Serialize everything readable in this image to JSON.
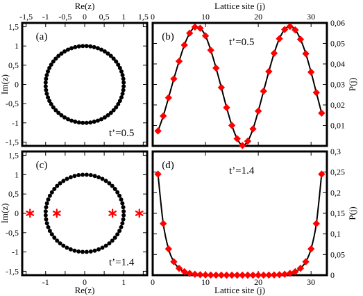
{
  "chart_data": [
    {
      "panel": "a",
      "type": "scatter",
      "label": "(a)",
      "annotation": "t’=0.5",
      "xlabel": "Re(z)",
      "ylabel": "Im(z)",
      "xlim": [
        -1.6,
        1.6
      ],
      "ylim": [
        -1.6,
        1.6
      ],
      "xticks": [
        -1.5,
        -1,
        -0.5,
        0,
        0.5,
        1,
        1.5
      ],
      "xtick_labels": [
        "-1,5",
        "-1",
        "-0,5",
        "0",
        "0,5",
        "1",
        "1,5"
      ],
      "yticks": [
        -1.5,
        -1,
        -0.5,
        0,
        0.5,
        1,
        1.5
      ],
      "ytick_labels": [
        "-1,5",
        "-1",
        "-0,5",
        "0",
        "0,5",
        "1",
        "1,5"
      ],
      "series": [
        {
          "kind": "circle",
          "color": "#000000",
          "marker": "dot",
          "count": 64,
          "radius": 1.0
        }
      ]
    },
    {
      "panel": "b",
      "type": "line",
      "label": "(b)",
      "annotation": "t’=0.5",
      "xlabel": "Lattice site (j)",
      "ylabel": "P(j)",
      "xlim": [
        0,
        33
      ],
      "ylim": [
        0,
        0.06
      ],
      "xticks": [
        0,
        10,
        20,
        30
      ],
      "xtick_labels": [
        "0",
        "10",
        "20",
        "30"
      ],
      "yticks": [
        0.01,
        0.02,
        0.03,
        0.04,
        0.05,
        0.06
      ],
      "ytick_labels": [
        "0,01",
        "0,02",
        "0,03",
        "0,04",
        "0,05",
        "0,06"
      ],
      "x": [
        1,
        2,
        3,
        4,
        5,
        6,
        7,
        8,
        9,
        10,
        11,
        12,
        13,
        14,
        15,
        16,
        17,
        18,
        19,
        20,
        21,
        22,
        23,
        24,
        25,
        26,
        27,
        28,
        29,
        30,
        31,
        32
      ],
      "y": [
        0.0073,
        0.0146,
        0.0235,
        0.0327,
        0.0413,
        0.0492,
        0.055,
        0.058,
        0.0574,
        0.0537,
        0.0467,
        0.038,
        0.0285,
        0.0187,
        0.01,
        0.0035,
        0.0002,
        0.0023,
        0.0083,
        0.017,
        0.0267,
        0.0363,
        0.0452,
        0.0523,
        0.0568,
        0.0583,
        0.0566,
        0.052,
        0.045,
        0.036,
        0.026,
        0.016
      ],
      "series_color": "#ff0000",
      "line_color": "#000000"
    },
    {
      "panel": "c",
      "type": "scatter",
      "label": "(c)",
      "annotation": "t’=1.4",
      "xlabel": "Re(z)",
      "ylabel": "Im(z)",
      "xlim": [
        -1.6,
        1.6
      ],
      "ylim": [
        -1.6,
        1.6
      ],
      "xticks": [
        -1.5,
        -1,
        -0.5,
        0,
        0.5,
        1,
        1.5
      ],
      "xtick_labels": [
        "",
        "-1",
        "",
        "0",
        "",
        "1",
        ""
      ],
      "yticks": [
        -1.5,
        -1,
        -0.5,
        0,
        0.5,
        1,
        1.5
      ],
      "ytick_labels": [
        "-1,5",
        "-1",
        "-0,5",
        "0",
        "0,5",
        "1",
        "1,5"
      ],
      "series": [
        {
          "kind": "circle",
          "color": "#000000",
          "marker": "dot",
          "count": 60,
          "radius": 1.0
        },
        {
          "kind": "points",
          "color": "#ff0000",
          "marker": "asterisk",
          "x": [
            -1.4,
            -0.714,
            0.714,
            1.4
          ],
          "y": [
            0,
            0,
            0,
            0
          ]
        }
      ]
    },
    {
      "panel": "d",
      "type": "line",
      "label": "(d)",
      "annotation": "t’=1.4",
      "xlabel": "Lattice site (j)",
      "ylabel": "P(j)",
      "xlim": [
        0,
        33
      ],
      "ylim": [
        0,
        0.3
      ],
      "xticks": [
        0,
        10,
        20,
        30
      ],
      "xtick_labels": [
        "0",
        "10",
        "20",
        "30"
      ],
      "yticks": [
        0,
        0.05,
        0.1,
        0.15,
        0.2,
        0.25,
        0.3
      ],
      "ytick_labels": [
        "0",
        "0,05",
        "0,1",
        "0,15",
        "0,2",
        "0,25",
        "0,3"
      ],
      "x": [
        1,
        2,
        3,
        4,
        5,
        6,
        7,
        8,
        9,
        10,
        11,
        12,
        13,
        14,
        15,
        16,
        17,
        18,
        19,
        20,
        21,
        22,
        23,
        24,
        25,
        26,
        27,
        28,
        29,
        30,
        31,
        32
      ],
      "y": [
        0.245,
        0.125,
        0.0637,
        0.0325,
        0.0166,
        0.0085,
        0.0043,
        0.0022,
        0.0011,
        0.0006,
        0.0003,
        0.0001,
        0.0001,
        0,
        0,
        0,
        0,
        0,
        0,
        0.0001,
        0.0001,
        0.0003,
        0.0006,
        0.0011,
        0.0022,
        0.0043,
        0.0085,
        0.0166,
        0.0325,
        0.0637,
        0.125,
        0.245
      ],
      "series_color": "#ff0000",
      "line_color": "#000000"
    }
  ]
}
